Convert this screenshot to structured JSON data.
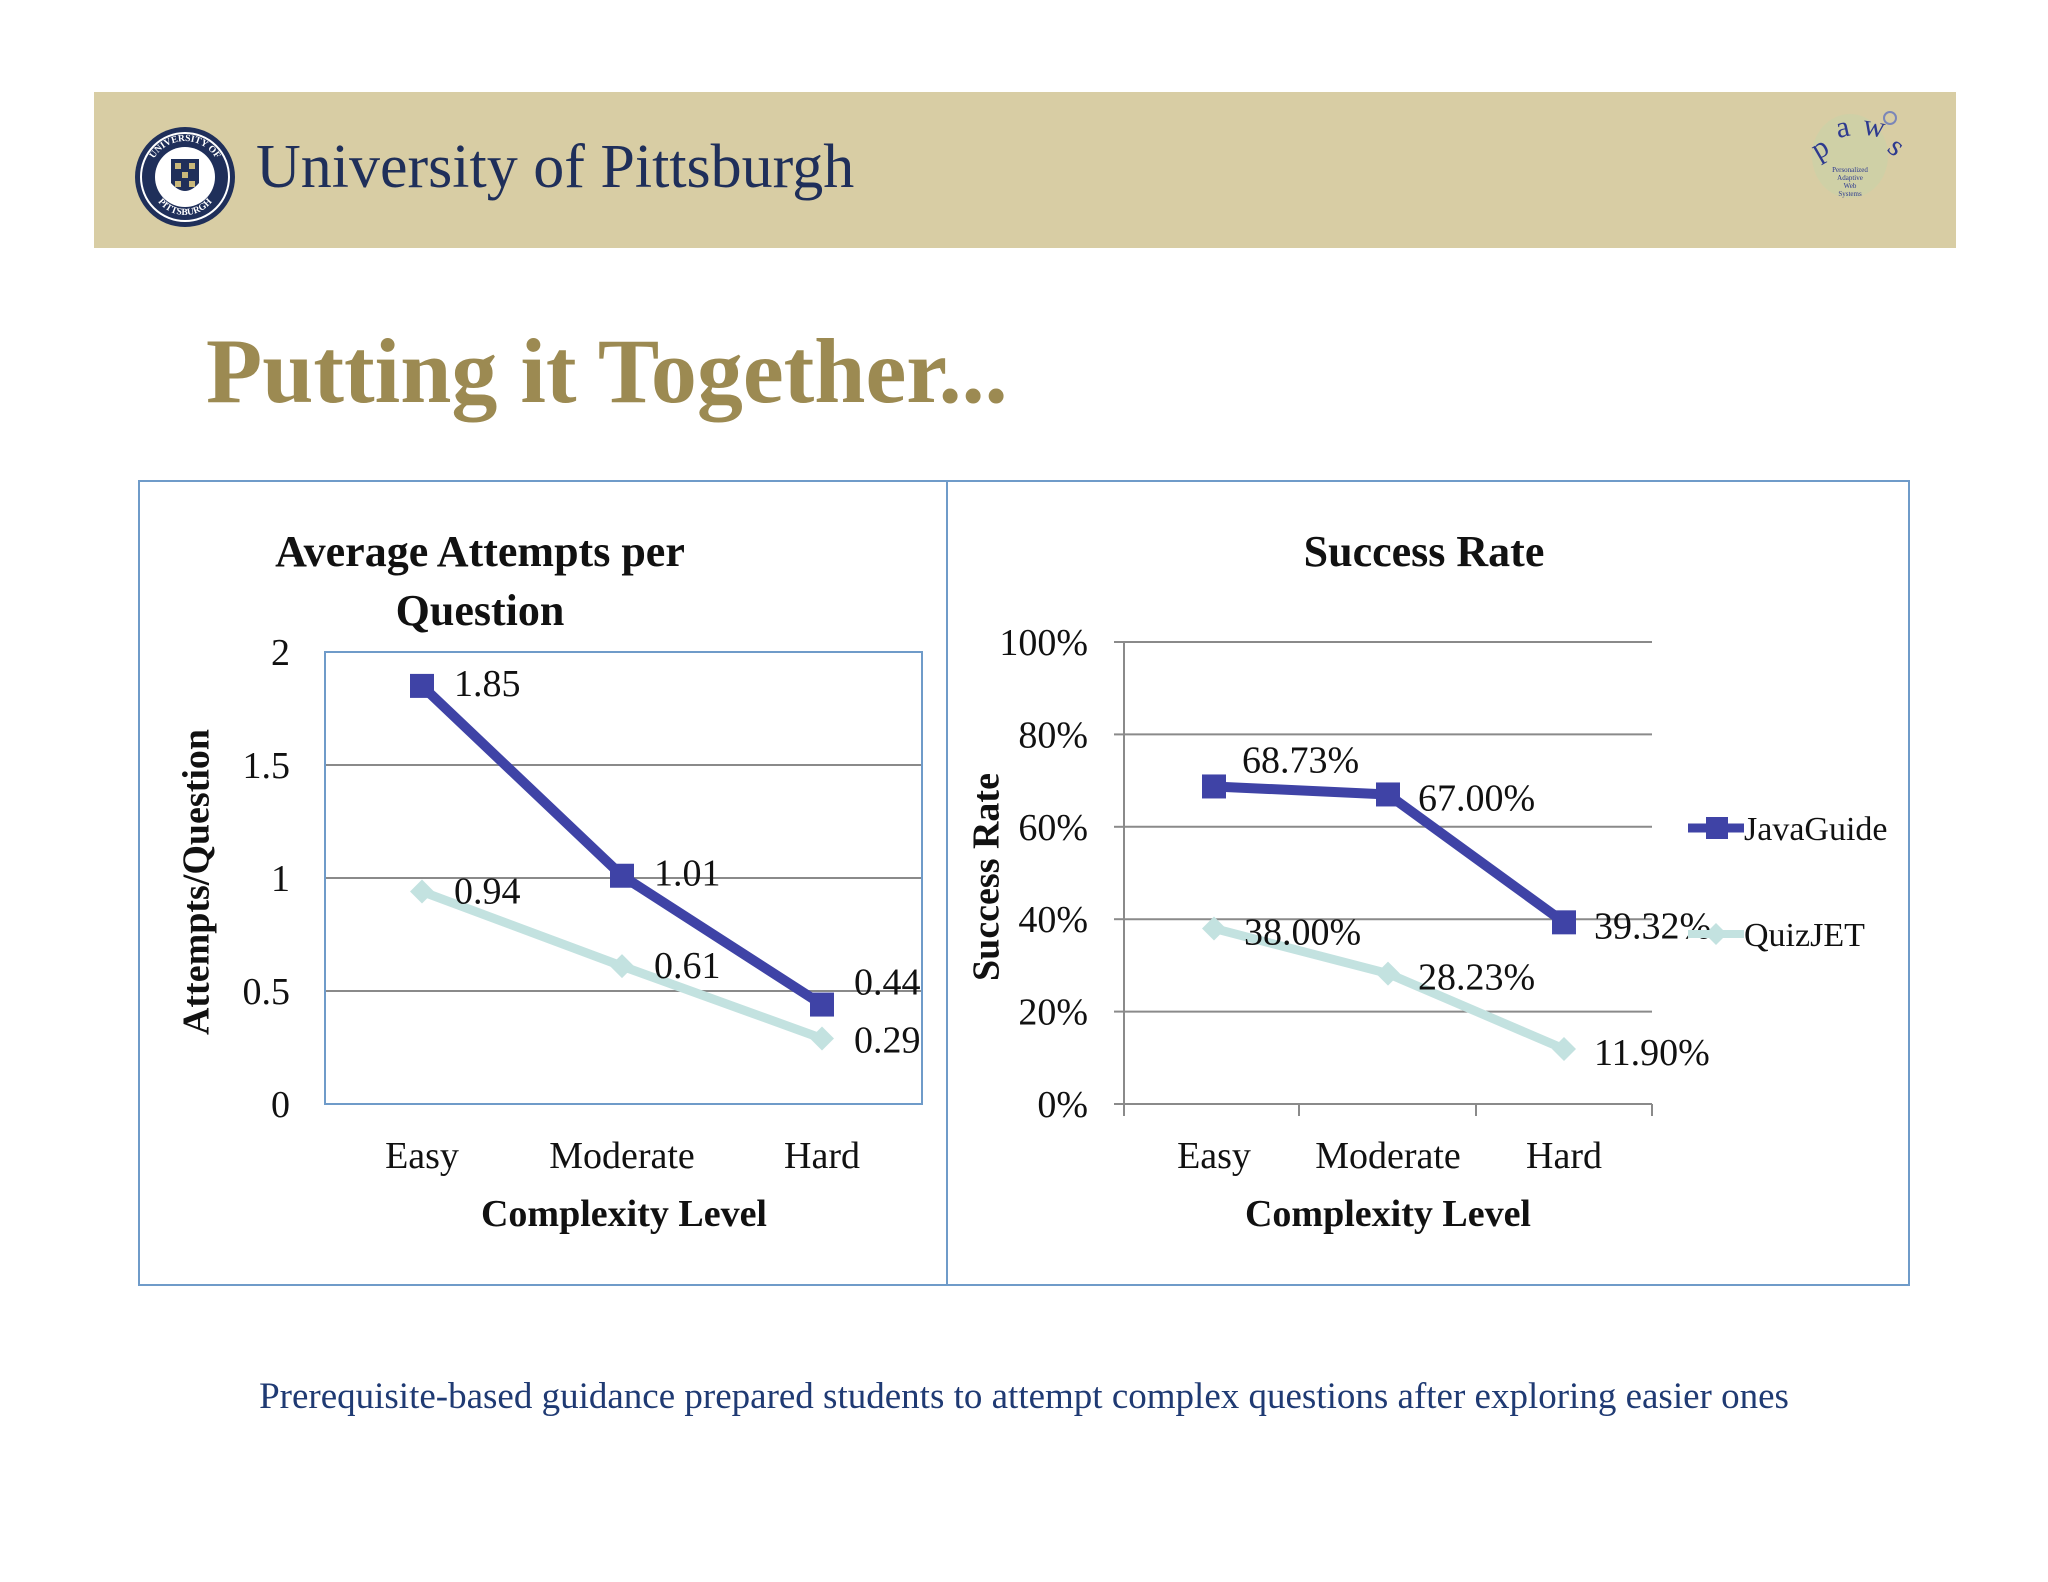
{
  "header": {
    "university_name": "University of Pittsburgh",
    "seal_text_top": "UNIVERSITY OF",
    "seal_text_bottom": "PITTSBURGH",
    "paws_logo": "paws",
    "paws_subtitle": [
      "Personalized",
      "Adaptive",
      "Web",
      "Systems"
    ],
    "banner_color": "#d8cda4"
  },
  "page_title": "Putting it Together...",
  "caption": "Prerequisite-based guidance prepared students to attempt complex questions after exploring easier ones",
  "colors": {
    "javaguide": "#3f43a6",
    "quizjet": "#c3e2e0",
    "title_gold": "#9c8a52",
    "navy": "#1f2f5a"
  },
  "chart_data": [
    {
      "type": "line",
      "title": "Average Attempts per Question",
      "xlabel": "Complexity Level",
      "ylabel": "Attempts/Question",
      "categories": [
        "Easy",
        "Moderate",
        "Hard"
      ],
      "ylim": [
        0,
        2
      ],
      "yticks": [
        0,
        0.5,
        1,
        1.5,
        2
      ],
      "ytick_labels": [
        "0",
        "0.5",
        "1",
        "1.5",
        "2"
      ],
      "grid": true,
      "legend": "none",
      "series": [
        {
          "name": "JavaGuide",
          "values": [
            1.85,
            1.01,
            0.44
          ],
          "labels": [
            "1.85",
            "1.01",
            "0.44"
          ],
          "marker": "square"
        },
        {
          "name": "QuizJET",
          "values": [
            0.94,
            0.61,
            0.29
          ],
          "labels": [
            "0.94",
            "0.61",
            "0.29"
          ],
          "marker": "diamond"
        }
      ]
    },
    {
      "type": "line",
      "title": "Success Rate",
      "xlabel": "Complexity Level",
      "ylabel": "Success Rate",
      "categories": [
        "Easy",
        "Moderate",
        "Hard"
      ],
      "ylim": [
        0,
        100
      ],
      "yticks": [
        0,
        20,
        40,
        60,
        80,
        100
      ],
      "ytick_labels": [
        "0%",
        "20%",
        "40%",
        "60%",
        "80%",
        "100%"
      ],
      "grid": true,
      "legend": "right",
      "series": [
        {
          "name": "JavaGuide",
          "values": [
            68.73,
            67.0,
            39.32
          ],
          "labels": [
            "68.73%",
            "67.00%",
            "39.32%"
          ],
          "marker": "square"
        },
        {
          "name": "QuizJET",
          "values": [
            38.0,
            28.23,
            11.9
          ],
          "labels": [
            "38.00%",
            "28.23%",
            "11.90%"
          ],
          "marker": "diamond"
        }
      ]
    }
  ]
}
